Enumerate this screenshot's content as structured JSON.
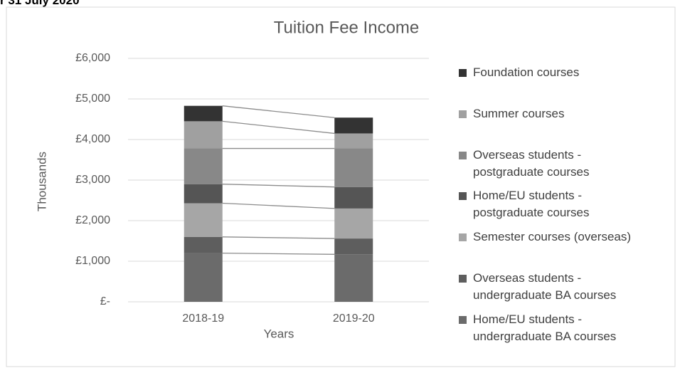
{
  "note": "r 31 July 2020",
  "chart_data": {
    "type": "stacked-bar",
    "title": "Tuition Fee Income",
    "y_label": "Thousands",
    "x_label": "Years",
    "categories": [
      "2018-19",
      "2019-20"
    ],
    "series": [
      {
        "name": "Home/EU students -\nundergraduate BA courses",
        "color": "#6b6b6b",
        "values": [
          1200,
          1170
        ]
      },
      {
        "name": "Overseas students -\nundergraduate BA courses",
        "color": "#5e5e5e",
        "values": [
          400,
          390
        ]
      },
      {
        "name": "Semester courses (overseas)",
        "color": "#a6a6a6",
        "values": [
          830,
          740
        ]
      },
      {
        "name": "Home/EU students -\npostgraduate courses",
        "color": "#555555",
        "values": [
          470,
          530
        ]
      },
      {
        "name": "Overseas students -\npostgraduate courses",
        "color": "#888888",
        "values": [
          880,
          950
        ]
      },
      {
        "name": "Summer courses",
        "color": "#a0a0a0",
        "values": [
          670,
          370
        ]
      },
      {
        "name": "Foundation  courses",
        "color": "#333333",
        "values": [
          380,
          390
        ]
      }
    ],
    "ylim": [
      0,
      6000
    ],
    "yticks": [
      {
        "value": 0,
        "label": "£-"
      },
      {
        "value": 1000,
        "label": "£1,000"
      },
      {
        "value": 2000,
        "label": "£2,000"
      },
      {
        "value": 3000,
        "label": "£3,000"
      },
      {
        "value": 4000,
        "label": "£4,000"
      },
      {
        "value": 5000,
        "label": "£5,000"
      },
      {
        "value": 6000,
        "label": "£6,000"
      }
    ],
    "grid": true,
    "series_lines": true,
    "legend": "right"
  }
}
